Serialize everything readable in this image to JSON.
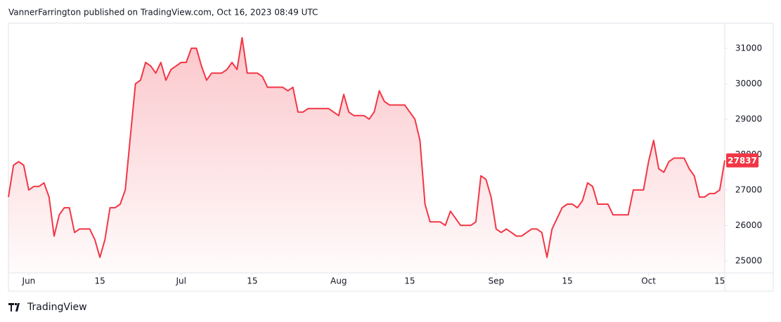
{
  "header": {
    "text": "VannerFarrington published on TradingView.com, Oct 16, 2023 08:49 UTC"
  },
  "footer": {
    "brand": "TradingView"
  },
  "chart_data": {
    "type": "area",
    "x": [
      "2023-05-28",
      "2023-05-29",
      "2023-05-30",
      "2023-05-31",
      "2023-06-01",
      "2023-06-02",
      "2023-06-03",
      "2023-06-04",
      "2023-06-05",
      "2023-06-06",
      "2023-06-07",
      "2023-06-08",
      "2023-06-09",
      "2023-06-10",
      "2023-06-11",
      "2023-06-12",
      "2023-06-13",
      "2023-06-14",
      "2023-06-15",
      "2023-06-16",
      "2023-06-17",
      "2023-06-18",
      "2023-06-19",
      "2023-06-20",
      "2023-06-21",
      "2023-06-22",
      "2023-06-23",
      "2023-06-24",
      "2023-06-25",
      "2023-06-26",
      "2023-06-27",
      "2023-06-28",
      "2023-06-29",
      "2023-06-30",
      "2023-07-01",
      "2023-07-02",
      "2023-07-03",
      "2023-07-04",
      "2023-07-05",
      "2023-07-06",
      "2023-07-07",
      "2023-07-08",
      "2023-07-09",
      "2023-07-10",
      "2023-07-11",
      "2023-07-12",
      "2023-07-13",
      "2023-07-14",
      "2023-07-15",
      "2023-07-16",
      "2023-07-17",
      "2023-07-18",
      "2023-07-19",
      "2023-07-20",
      "2023-07-21",
      "2023-07-22",
      "2023-07-23",
      "2023-07-24",
      "2023-07-25",
      "2023-07-26",
      "2023-07-27",
      "2023-07-28",
      "2023-07-29",
      "2023-07-30",
      "2023-07-31",
      "2023-08-01",
      "2023-08-02",
      "2023-08-03",
      "2023-08-04",
      "2023-08-05",
      "2023-08-06",
      "2023-08-07",
      "2023-08-08",
      "2023-08-09",
      "2023-08-10",
      "2023-08-11",
      "2023-08-12",
      "2023-08-13",
      "2023-08-14",
      "2023-08-15",
      "2023-08-16",
      "2023-08-17",
      "2023-08-18",
      "2023-08-19",
      "2023-08-20",
      "2023-08-21",
      "2023-08-22",
      "2023-08-23",
      "2023-08-24",
      "2023-08-25",
      "2023-08-26",
      "2023-08-27",
      "2023-08-28",
      "2023-08-29",
      "2023-08-30",
      "2023-08-31",
      "2023-09-01",
      "2023-09-02",
      "2023-09-03",
      "2023-09-04",
      "2023-09-05",
      "2023-09-06",
      "2023-09-07",
      "2023-09-08",
      "2023-09-09",
      "2023-09-10",
      "2023-09-11",
      "2023-09-12",
      "2023-09-13",
      "2023-09-14",
      "2023-09-15",
      "2023-09-16",
      "2023-09-17",
      "2023-09-18",
      "2023-09-19",
      "2023-09-20",
      "2023-09-21",
      "2023-09-22",
      "2023-09-23",
      "2023-09-24",
      "2023-09-25",
      "2023-09-26",
      "2023-09-27",
      "2023-09-28",
      "2023-09-29",
      "2023-09-30",
      "2023-10-01",
      "2023-10-02",
      "2023-10-03",
      "2023-10-04",
      "2023-10-05",
      "2023-10-06",
      "2023-10-07",
      "2023-10-08",
      "2023-10-09",
      "2023-10-10",
      "2023-10-11",
      "2023-10-12",
      "2023-10-13",
      "2023-10-14",
      "2023-10-15",
      "2023-10-16"
    ],
    "series": [
      {
        "color": "#f23645",
        "values": [
          26800,
          27700,
          27800,
          27700,
          27000,
          27100,
          27100,
          27200,
          26800,
          25700,
          26300,
          26500,
          26500,
          25800,
          25900,
          25900,
          25900,
          25600,
          25100,
          25600,
          26500,
          26500,
          26600,
          27000,
          28500,
          30000,
          30100,
          30600,
          30500,
          30300,
          30600,
          30100,
          30400,
          30500,
          30600,
          30600,
          31000,
          31000,
          30500,
          30100,
          30300,
          30300,
          30300,
          30400,
          30600,
          30400,
          31300,
          30300,
          30300,
          30300,
          30200,
          29900,
          29900,
          29900,
          29900,
          29800,
          29900,
          29200,
          29200,
          29300,
          29300,
          29300,
          29300,
          29300,
          29200,
          29100,
          29700,
          29200,
          29100,
          29100,
          29100,
          29000,
          29200,
          29800,
          29500,
          29400,
          29400,
          29400,
          29400,
          29200,
          29000,
          28400,
          26600,
          26100,
          26100,
          26100,
          26000,
          26400,
          26200,
          26000,
          26000,
          26000,
          26100,
          27400,
          27300,
          26800,
          25900,
          25800,
          25900,
          25800,
          25700,
          25700,
          25800,
          25900,
          25900,
          25800,
          25100,
          25900,
          26200,
          26500,
          26600,
          26600,
          26500,
          26700,
          27200,
          27100,
          26600,
          26600,
          26600,
          26300,
          26300,
          26300,
          26300,
          27000,
          27000,
          27000,
          27800,
          28400,
          27600,
          27500,
          27800,
          27900,
          27900,
          27900,
          27600,
          27400,
          26800,
          26800,
          26900,
          26900,
          27000,
          27837
        ]
      }
    ],
    "xlim": [
      "2023-05-28",
      "2023-10-16"
    ],
    "xticks": [
      {
        "value": "2023-06-01",
        "label": "Jun"
      },
      {
        "value": "2023-06-15",
        "label": "15"
      },
      {
        "value": "2023-07-01",
        "label": "Jul"
      },
      {
        "value": "2023-07-15",
        "label": "15"
      },
      {
        "value": "2023-08-01",
        "label": "Aug"
      },
      {
        "value": "2023-08-15",
        "label": "15"
      },
      {
        "value": "2023-09-01",
        "label": "Sep"
      },
      {
        "value": "2023-09-15",
        "label": "15"
      },
      {
        "value": "2023-10-01",
        "label": "Oct"
      },
      {
        "value": "2023-10-15",
        "label": "15"
      }
    ],
    "ylim": [
      24680,
      31670
    ],
    "yticks": [
      25000,
      26000,
      27000,
      28000,
      29000,
      30000,
      31000
    ],
    "grid": false
  }
}
